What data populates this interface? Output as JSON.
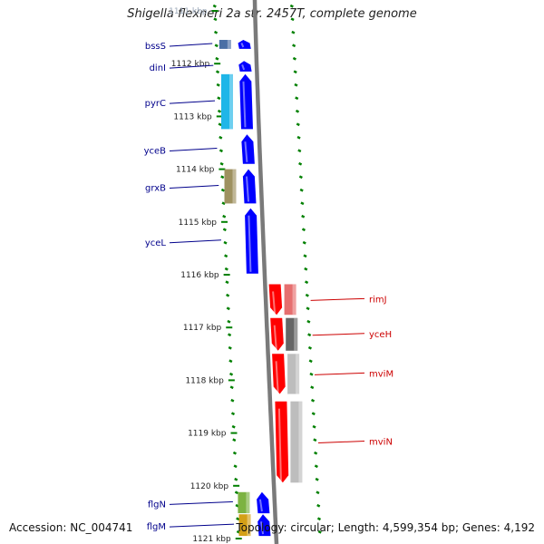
{
  "title": "Shigella flexneri 2a str. 2457T, complete genome",
  "footer": {
    "accession": "Accession: NC_004741",
    "summary": "Topology: circular; Length: 4,599,354 bp; Genes: 4,192"
  },
  "colors": {
    "forward_strand": "#0000ff",
    "reverse_strand": "#ff0000",
    "forward_label": "#00008b",
    "reverse_label": "#cc0000",
    "ruler_ticks": "#008000",
    "backbone": "#7a7a7a"
  },
  "ruler": {
    "unit": "kbp",
    "ticks": [
      {
        "label": "1111 kbp",
        "faded": true
      },
      {
        "label": "1112 kbp"
      },
      {
        "label": "1113 kbp"
      },
      {
        "label": "1114 kbp"
      },
      {
        "label": "1115 kbp"
      },
      {
        "label": "1116 kbp"
      },
      {
        "label": "1117 kbp"
      },
      {
        "label": "1118 kbp"
      },
      {
        "label": "1119 kbp"
      },
      {
        "label": "1120 kbp"
      },
      {
        "label": "1121 kbp"
      }
    ]
  },
  "genes": [
    {
      "name": "bssS",
      "strand": "forward",
      "kbp_start": 1111.55,
      "kbp_end": 1111.72,
      "cog_color": "#4a6fa5"
    },
    {
      "name": "dinI",
      "strand": "forward",
      "kbp_start": 1111.95,
      "kbp_end": 1112.15,
      "cog_color": null
    },
    {
      "name": "pyrC",
      "strand": "forward",
      "kbp_start": 1112.2,
      "kbp_end": 1113.24,
      "cog_color": "#1fb6e8"
    },
    {
      "name": "yceB",
      "strand": "forward",
      "kbp_start": 1113.34,
      "kbp_end": 1113.9,
      "cog_color": null
    },
    {
      "name": "grxB",
      "strand": "forward",
      "kbp_start": 1114.0,
      "kbp_end": 1114.65,
      "cog_color": "#9e9160"
    },
    {
      "name": "yceL",
      "strand": "forward",
      "kbp_start": 1114.74,
      "kbp_end": 1115.98,
      "cog_color": null
    },
    {
      "name": "rimJ",
      "strand": "reverse",
      "kbp_start": 1116.18,
      "kbp_end": 1116.76,
      "cog_color": "#e66f6f"
    },
    {
      "name": "yceH",
      "strand": "reverse",
      "kbp_start": 1116.82,
      "kbp_end": 1117.44,
      "cog_color": "#666666"
    },
    {
      "name": "mviM",
      "strand": "reverse",
      "kbp_start": 1117.5,
      "kbp_end": 1118.26,
      "cog_color": "#bdbdbd"
    },
    {
      "name": "mviN",
      "strand": "reverse",
      "kbp_start": 1118.4,
      "kbp_end": 1119.94,
      "cog_color": "#bdbdbd"
    },
    {
      "name": "flgN",
      "strand": "forward",
      "kbp_start": 1120.12,
      "kbp_end": 1120.52,
      "cog_color": "#7cb342"
    },
    {
      "name": "flgM",
      "strand": "forward",
      "kbp_start": 1120.54,
      "kbp_end": 1120.95,
      "cog_color": "#d4a017"
    }
  ]
}
